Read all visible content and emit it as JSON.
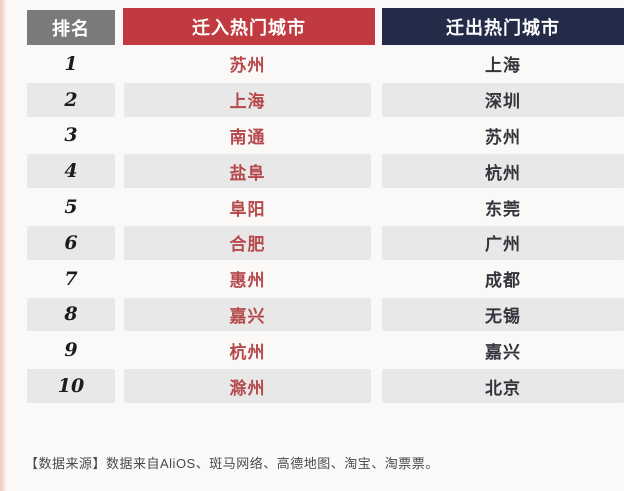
{
  "table": {
    "headers": [
      {
        "label": "排名",
        "bg": "#7a797b"
      },
      {
        "label": "迁入热门城市",
        "bg": "#c03a3f"
      },
      {
        "label": "迁出热门城市",
        "bg": "#242b48"
      }
    ],
    "rows": [
      {
        "rank": "1",
        "move_in": "苏州",
        "move_out": "上海"
      },
      {
        "rank": "2",
        "move_in": "上海",
        "move_out": "深圳"
      },
      {
        "rank": "3",
        "move_in": "南通",
        "move_out": "苏州"
      },
      {
        "rank": "4",
        "move_in": "盐阜",
        "move_out": "杭州"
      },
      {
        "rank": "5",
        "move_in": "阜阳",
        "move_out": "东莞"
      },
      {
        "rank": "6",
        "move_in": "合肥",
        "move_out": "广州"
      },
      {
        "rank": "7",
        "move_in": "惠州",
        "move_out": "成都"
      },
      {
        "rank": "8",
        "move_in": "嘉兴",
        "move_out": "无锡"
      },
      {
        "rank": "9",
        "move_in": "杭州",
        "move_out": "嘉兴"
      },
      {
        "rank": "10",
        "move_in": "滁州",
        "move_out": "北京"
      }
    ]
  },
  "footer": {
    "text": "【数据来源】数据来自AliOS、斑马网络、高德地图、淘宝、淘票票。"
  },
  "colors": {
    "rank_header_bg": "#7a797b",
    "move_in_header_bg": "#c03a3f",
    "move_out_header_bg": "#242b48",
    "move_in_text": "#b5494b",
    "move_out_text": "#35343c",
    "shaded_row_bg": "#e9e8e8",
    "page_bg": "#faf9f7"
  },
  "chart_data": {
    "type": "table",
    "columns": [
      "排名",
      "迁入热门城市",
      "迁出热门城市"
    ],
    "rows": [
      [
        "1",
        "苏州",
        "上海"
      ],
      [
        "2",
        "上海",
        "深圳"
      ],
      [
        "3",
        "南通",
        "苏州"
      ],
      [
        "4",
        "盐阜",
        "杭州"
      ],
      [
        "5",
        "阜阳",
        "东莞"
      ],
      [
        "6",
        "合肥",
        "广州"
      ],
      [
        "7",
        "惠州",
        "成都"
      ],
      [
        "8",
        "嘉兴",
        "无锡"
      ],
      [
        "9",
        "杭州",
        "嘉兴"
      ],
      [
        "10",
        "滁州",
        "北京"
      ]
    ],
    "notes": "【数据来源】数据来自AliOS、斑马网络、高德地图、淘宝、淘票票。"
  }
}
